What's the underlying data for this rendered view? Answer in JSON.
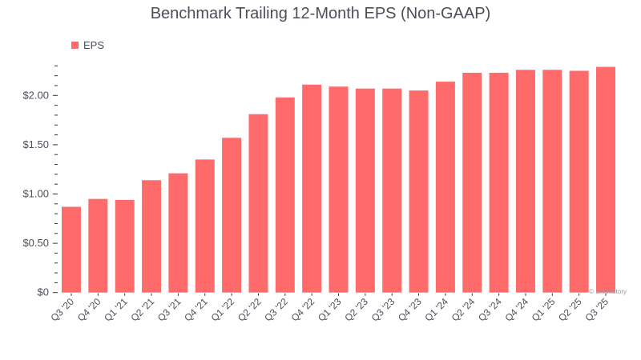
{
  "chart_data": {
    "type": "bar",
    "title": "Benchmark Trailing 12-Month EPS (Non-GAAP)",
    "xlabel": "",
    "ylabel": "",
    "ylim": [
      0,
      2.3
    ],
    "legend": {
      "position": "top-left",
      "entries": [
        "EPS"
      ]
    },
    "yticks": [
      {
        "value": 0,
        "label": "$0"
      },
      {
        "value": 0.5,
        "label": "$0.50"
      },
      {
        "value": 1.0,
        "label": "$1.00"
      },
      {
        "value": 1.5,
        "label": "$1.50"
      },
      {
        "value": 2.0,
        "label": "$2.00"
      }
    ],
    "categories": [
      "Q3 '20",
      "Q4 '20",
      "Q1 '21",
      "Q2 '21",
      "Q3 '21",
      "Q4 '21",
      "Q1 '22",
      "Q2 '22",
      "Q3 '22",
      "Q4 '22",
      "Q1 '23",
      "Q2 '23",
      "Q3 '23",
      "Q4 '23",
      "Q1 '24",
      "Q2 '24",
      "Q3 '24",
      "Q4 '24",
      "Q1 '25",
      "Q2 '25",
      "Q3 '25"
    ],
    "series": [
      {
        "name": "EPS",
        "color": "#ff6b6b",
        "values": [
          0.87,
          0.95,
          0.94,
          1.14,
          1.21,
          1.35,
          1.57,
          1.81,
          1.98,
          2.11,
          2.09,
          2.07,
          2.07,
          2.05,
          2.14,
          2.23,
          2.23,
          2.26,
          2.26,
          2.25,
          2.29
        ]
      }
    ],
    "grid": false
  },
  "watermark": "© StockStory"
}
